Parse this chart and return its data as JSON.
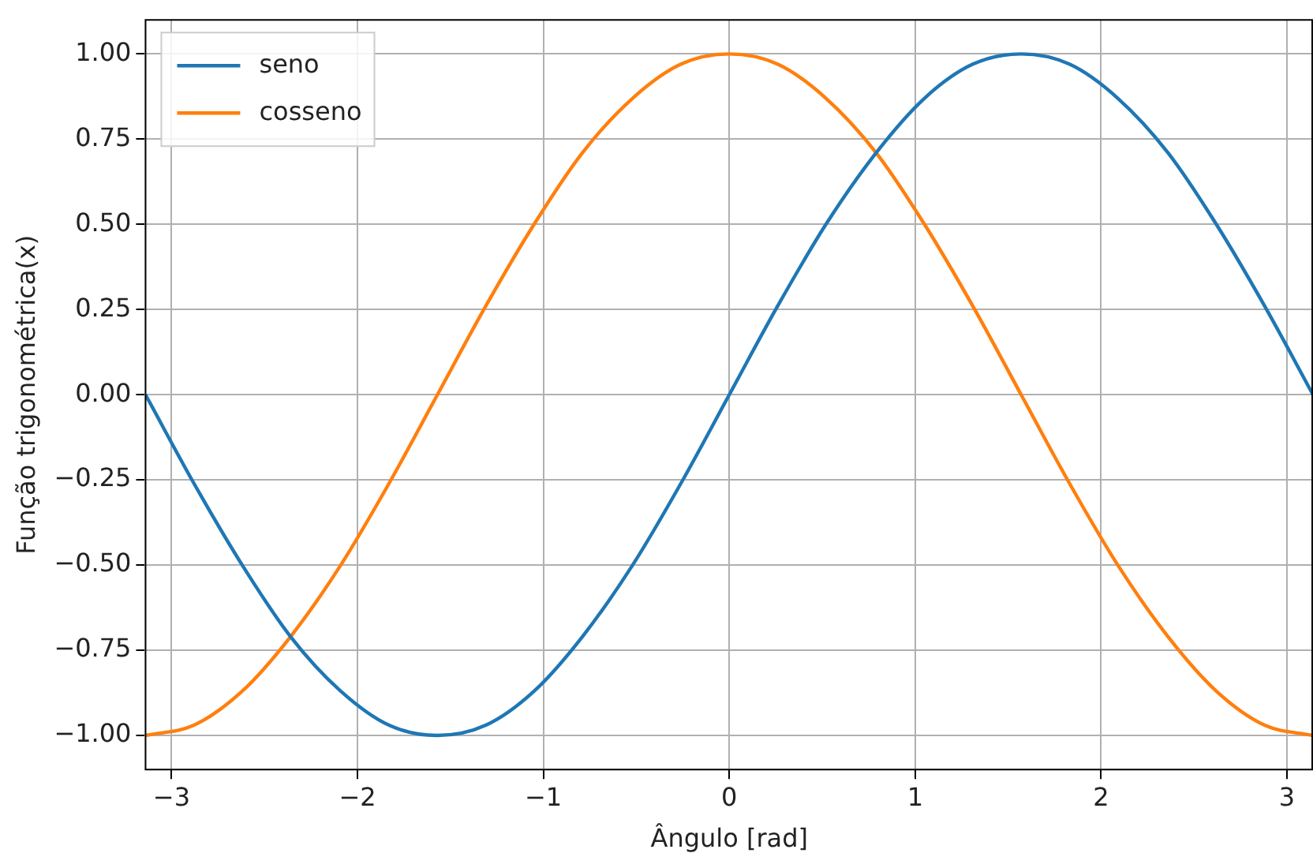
{
  "chart_data": {
    "type": "line",
    "xlabel": "Ângulo [rad]",
    "ylabel": "Função trigonométrica(x)",
    "x": [
      -3.14,
      -2.88,
      -2.62,
      -2.36,
      -2.09,
      -1.83,
      -1.57,
      -1.31,
      -1.05,
      -0.79,
      -0.52,
      -0.26,
      0,
      0.26,
      0.52,
      0.79,
      1.05,
      1.31,
      1.57,
      1.83,
      2.09,
      2.36,
      2.62,
      2.88,
      3.14
    ],
    "series": [
      {
        "name": "seno",
        "color": "#1f77b4",
        "values": [
          0,
          -0.26,
          -0.5,
          -0.71,
          -0.87,
          -0.97,
          -1,
          -0.97,
          -0.87,
          -0.71,
          -0.5,
          -0.26,
          0,
          0.26,
          0.5,
          0.71,
          0.87,
          0.97,
          1,
          0.97,
          0.87,
          0.71,
          0.5,
          0.26,
          0
        ]
      },
      {
        "name": "cosseno",
        "color": "#ff7f0e",
        "values": [
          -1,
          -0.97,
          -0.87,
          -0.71,
          -0.5,
          -0.26,
          0,
          0.26,
          0.5,
          0.71,
          0.87,
          0.97,
          1,
          0.97,
          0.87,
          0.71,
          0.5,
          0.26,
          0,
          -0.26,
          -0.5,
          -0.71,
          -0.87,
          -0.97,
          -1
        ]
      }
    ],
    "xlim": [
      -3.14,
      3.14
    ],
    "ylim": [
      -1.1,
      1.1
    ],
    "xticks": [
      {
        "value": -3,
        "label": "−3"
      },
      {
        "value": -2,
        "label": "−2"
      },
      {
        "value": -1,
        "label": "−1"
      },
      0,
      1,
      2,
      3
    ],
    "yticks": [
      {
        "value": -1,
        "label": "−1.00"
      },
      {
        "value": -0.75,
        "label": "−0.75"
      },
      {
        "value": -0.5,
        "label": "−0.50"
      },
      {
        "value": -0.25,
        "label": "−0.25"
      },
      {
        "value": 0,
        "label": "0.00"
      },
      {
        "value": 0.25,
        "label": "0.25"
      },
      {
        "value": 0.5,
        "label": "0.50"
      },
      {
        "value": 0.75,
        "label": "0.75"
      },
      {
        "value": 1,
        "label": "1.00"
      }
    ],
    "grid": true,
    "legend": "top left",
    "marker": "none",
    "line_style": "solid"
  }
}
